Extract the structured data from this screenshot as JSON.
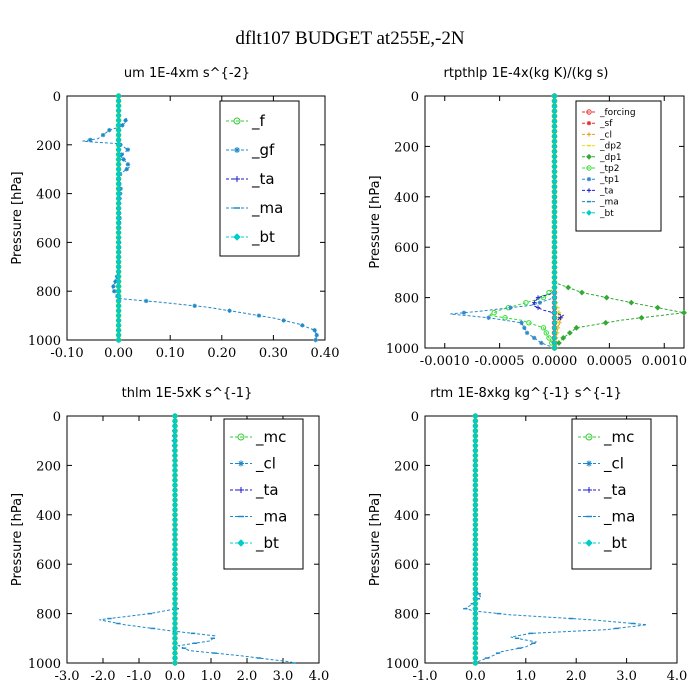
{
  "title": "dflt107  BUDGET at255E,-2N",
  "chart_data": [
    {
      "type": "line",
      "title": "um   1E-4xm s^{-2}",
      "ylabel": "Pressure [hPa]",
      "xlim": [
        -0.1,
        0.4
      ],
      "ylim": [
        1000,
        0
      ],
      "xticks": [
        -0.1,
        0.0,
        0.1,
        0.2,
        0.3,
        0.4
      ],
      "xtick_labels": [
        "-0.10",
        "0.00",
        "0.10",
        "0.20",
        "0.30",
        "0.40"
      ],
      "yticks": [
        0,
        200,
        400,
        600,
        800,
        1000
      ],
      "ytick_labels": [
        "0",
        "200",
        "400",
        "600",
        "800",
        "1000"
      ],
      "legend_labels": [
        "_f",
        "_gf",
        "_ta",
        "_ma",
        "_bt"
      ],
      "series": [
        {
          "name": "_f",
          "color": "#33cc33",
          "values": [
            [
              0.0,
              0
            ],
            [
              0.0,
              100
            ],
            [
              0.0,
              200
            ],
            [
              0.0,
              300
            ],
            [
              0.0,
              400
            ],
            [
              0.0,
              500
            ],
            [
              0.0,
              600
            ],
            [
              0.0,
              700
            ],
            [
              0.0,
              800
            ],
            [
              0.0,
              900
            ],
            [
              0.0,
              1000
            ]
          ]
        },
        {
          "name": "_gf",
          "color": "#1e88c8",
          "values": [
            [
              0.015,
              90
            ],
            [
              0.012,
              110
            ],
            [
              0.005,
              125
            ],
            [
              -0.018,
              140
            ],
            [
              -0.03,
              160
            ],
            [
              -0.04,
              175
            ],
            [
              -0.07,
              185
            ],
            [
              -0.04,
              190
            ],
            [
              0.0,
              195
            ],
            [
              0.018,
              220
            ],
            [
              0.003,
              245
            ],
            [
              0.012,
              265
            ],
            [
              0.022,
              290
            ],
            [
              0.003,
              320
            ],
            [
              0.0,
              345
            ],
            [
              0.004,
              380
            ],
            [
              0.002,
              420
            ],
            [
              0.0,
              460
            ],
            [
              0.002,
              500
            ],
            [
              0.0,
              560
            ],
            [
              0.001,
              620
            ],
            [
              0.0,
              680
            ],
            [
              0.0,
              720
            ],
            [
              -0.006,
              760
            ],
            [
              -0.012,
              790
            ],
            [
              -0.005,
              810
            ],
            [
              0.0,
              830
            ],
            [
              0.08,
              845
            ],
            [
              0.17,
              865
            ],
            [
              0.23,
              885
            ],
            [
              0.3,
              910
            ],
            [
              0.35,
              935
            ],
            [
              0.38,
              960
            ],
            [
              0.384,
              980
            ],
            [
              0.382,
              1000
            ]
          ]
        },
        {
          "name": "_ta",
          "color": "#1a1acc",
          "values": [
            [
              0.0,
              0
            ],
            [
              0.0,
              500
            ],
            [
              0.0,
              1000
            ]
          ]
        },
        {
          "name": "_ma",
          "color": "#1e88c8",
          "values": [
            [
              0.0,
              0
            ],
            [
              0.0,
              500
            ],
            [
              0.0,
              1000
            ]
          ]
        },
        {
          "name": "_bt",
          "color": "#00cccc",
          "values": [
            [
              0.0,
              0
            ],
            [
              0.0,
              500
            ],
            [
              0.0,
              1000
            ]
          ]
        }
      ]
    },
    {
      "type": "line",
      "title": "rtpthlp   1E-4x(kg K)/(kg s)",
      "ylabel": "Pressure [hPa]",
      "xlim": [
        -0.00118,
        0.00118
      ],
      "ylim": [
        1000,
        0
      ],
      "xticks": [
        -0.001,
        -0.0005,
        0.0,
        0.0005,
        0.001
      ],
      "xtick_labels": [
        "-0.0010",
        "-0.0005",
        "0.0000",
        "0.0005",
        "0.0010"
      ],
      "yticks": [
        0,
        200,
        400,
        600,
        800,
        1000
      ],
      "ytick_labels": [
        "0",
        "200",
        "400",
        "600",
        "800",
        "1000"
      ],
      "legend_labels": [
        "_forcing",
        "_sf",
        "_cl",
        "_dp2",
        "_dp1",
        "_tp2",
        "_tp1",
        "_ta",
        "_ma",
        "_bt"
      ],
      "series": [
        {
          "name": "_forcing",
          "color": "#e03030",
          "values": [
            [
              0,
              0
            ],
            [
              0,
              1000
            ]
          ]
        },
        {
          "name": "_sf",
          "color": "#e03030",
          "values": [
            [
              0,
              0
            ],
            [
              0,
              1000
            ]
          ]
        },
        {
          "name": "_cl",
          "color": "#e0a020",
          "values": [
            [
              0,
              0
            ],
            [
              0,
              800
            ],
            [
              2e-05,
              840
            ],
            [
              6e-05,
              880
            ],
            [
              3e-05,
              920
            ],
            [
              0,
              1000
            ]
          ]
        },
        {
          "name": "_dp2",
          "color": "#e0e020",
          "values": [
            [
              0,
              0
            ],
            [
              0,
              800
            ],
            [
              4e-05,
              860
            ],
            [
              0,
              1000
            ]
          ]
        },
        {
          "name": "_dp1",
          "color": "#33aa33",
          "values": [
            [
              0,
              0
            ],
            [
              0,
              740
            ],
            [
              0.00025,
              780
            ],
            [
              0.0007,
              820
            ],
            [
              0.00118,
              860
            ],
            [
              0.0006,
              890
            ],
            [
              0.0002,
              920
            ],
            [
              8e-05,
              960
            ],
            [
              0,
              1000
            ]
          ]
        },
        {
          "name": "_tp2",
          "color": "#33dd33",
          "values": [
            [
              0,
              0
            ],
            [
              0,
              760
            ],
            [
              -0.0001,
              800
            ],
            [
              -0.0005,
              850
            ],
            [
              -0.0006,
              870
            ],
            [
              -0.0003,
              890
            ],
            [
              -0.0001,
              920
            ],
            [
              -5e-05,
              960
            ],
            [
              0,
              1000
            ]
          ]
        },
        {
          "name": "_tp1",
          "color": "#3088cc",
          "values": [
            [
              0,
              0
            ],
            [
              0,
              800
            ],
            [
              -0.0002,
              830
            ],
            [
              -0.0007,
              855
            ],
            [
              -0.00095,
              865
            ],
            [
              -0.0006,
              880
            ],
            [
              -0.0003,
              900
            ],
            [
              -0.00025,
              940
            ],
            [
              -0.00012,
              980
            ],
            [
              0,
              1000
            ]
          ]
        },
        {
          "name": "_ta",
          "color": "#2020cc",
          "values": [
            [
              0,
              0
            ],
            [
              0,
              780
            ],
            [
              -0.00015,
              800
            ],
            [
              -0.0002,
              830
            ],
            [
              -0.0001,
              850
            ],
            [
              8e-05,
              870
            ],
            [
              0,
              900
            ],
            [
              0,
              1000
            ]
          ]
        },
        {
          "name": "_ma",
          "color": "#1e88c8",
          "values": [
            [
              0,
              0
            ],
            [
              0,
              1000
            ]
          ]
        },
        {
          "name": "_bt",
          "color": "#00cccc",
          "values": [
            [
              0,
              0
            ],
            [
              0,
              1000
            ]
          ]
        }
      ]
    },
    {
      "type": "line",
      "title": "thlm   1E-5xK s^{-1}",
      "ylabel": "Pressure [hPa]",
      "xlim": [
        -3.0,
        4.0
      ],
      "ylim": [
        1000,
        0
      ],
      "xticks": [
        -3.0,
        -2.0,
        -1.0,
        0.0,
        1.0,
        2.0,
        3.0,
        4.0
      ],
      "xtick_labels": [
        "-3.0",
        "-2.0",
        "-1.0",
        "0.0",
        "1.0",
        "2.0",
        "3.0",
        "4.0"
      ],
      "yticks": [
        0,
        200,
        400,
        600,
        800,
        1000
      ],
      "ytick_labels": [
        "0",
        "200",
        "400",
        "600",
        "800",
        "1000"
      ],
      "legend_labels": [
        "_mc",
        "_cl",
        "_ta",
        "_ma",
        "_bt"
      ],
      "series": [
        {
          "name": "_mc",
          "color": "#33cc33",
          "values": [
            [
              0,
              0
            ],
            [
              0,
              1000
            ]
          ]
        },
        {
          "name": "_cl",
          "color": "#1e88c8",
          "values": [
            [
              0,
              0
            ],
            [
              0,
              1000
            ]
          ]
        },
        {
          "name": "_ta",
          "color": "#1a1acc",
          "values": [
            [
              0,
              0
            ],
            [
              0,
              1000
            ]
          ]
        },
        {
          "name": "_ma",
          "color": "#1e88c8",
          "values": [
            [
              0.0,
              0
            ],
            [
              -0.03,
              100
            ],
            [
              0.0,
              200
            ],
            [
              0.0,
              400
            ],
            [
              0.0,
              600
            ],
            [
              0.0,
              760
            ],
            [
              0.05,
              780
            ],
            [
              -0.7,
              800
            ],
            [
              -2.1,
              825
            ],
            [
              -1.4,
              845
            ],
            [
              -0.1,
              870
            ],
            [
              1.1,
              890
            ],
            [
              1.0,
              910
            ],
            [
              0.1,
              930
            ],
            [
              0.4,
              950
            ],
            [
              1.8,
              970
            ],
            [
              2.6,
              985
            ],
            [
              3.2,
              995
            ],
            [
              3.3,
              1000
            ]
          ]
        },
        {
          "name": "_bt",
          "color": "#00cccc",
          "values": [
            [
              0,
              0
            ],
            [
              0,
              1000
            ]
          ]
        }
      ]
    },
    {
      "type": "line",
      "title": "rtm   1E-8xkg kg^{-1} s^{-1}",
      "ylabel": "Pressure [hPa]",
      "xlim": [
        -1.0,
        4.0
      ],
      "ylim": [
        1000,
        0
      ],
      "xticks": [
        -1.0,
        0.0,
        1.0,
        2.0,
        3.0,
        4.0
      ],
      "xtick_labels": [
        "-1.0",
        "0.0",
        "1.0",
        "2.0",
        "3.0",
        "4.0"
      ],
      "yticks": [
        0,
        200,
        400,
        600,
        800,
        1000
      ],
      "ytick_labels": [
        "0",
        "200",
        "400",
        "600",
        "800",
        "1000"
      ],
      "legend_labels": [
        "_mc",
        "_cl",
        "_ta",
        "_ma",
        "_bt"
      ],
      "series": [
        {
          "name": "_mc",
          "color": "#33cc33",
          "values": [
            [
              0,
              0
            ],
            [
              0,
              1000
            ]
          ]
        },
        {
          "name": "_cl",
          "color": "#1e88c8",
          "values": [
            [
              0,
              0
            ],
            [
              0,
              1000
            ]
          ]
        },
        {
          "name": "_ta",
          "color": "#1a1acc",
          "values": [
            [
              0,
              0
            ],
            [
              0,
              1000
            ]
          ]
        },
        {
          "name": "_ma",
          "color": "#1e88c8",
          "values": [
            [
              0.0,
              0
            ],
            [
              0.0,
              200
            ],
            [
              0.0,
              500
            ],
            [
              0.0,
              700
            ],
            [
              0.1,
              730
            ],
            [
              -0.05,
              760
            ],
            [
              -0.2,
              780
            ],
            [
              0.0,
              790
            ],
            [
              0.7,
              805
            ],
            [
              2.3,
              825
            ],
            [
              3.4,
              845
            ],
            [
              2.6,
              865
            ],
            [
              1.1,
              880
            ],
            [
              0.7,
              895
            ],
            [
              1.2,
              915
            ],
            [
              1.0,
              935
            ],
            [
              0.5,
              955
            ],
            [
              0.3,
              975
            ],
            [
              0.1,
              990
            ],
            [
              0.0,
              1000
            ]
          ]
        },
        {
          "name": "_bt",
          "color": "#00cccc",
          "values": [
            [
              0,
              0
            ],
            [
              0,
              1000
            ]
          ]
        }
      ]
    }
  ]
}
